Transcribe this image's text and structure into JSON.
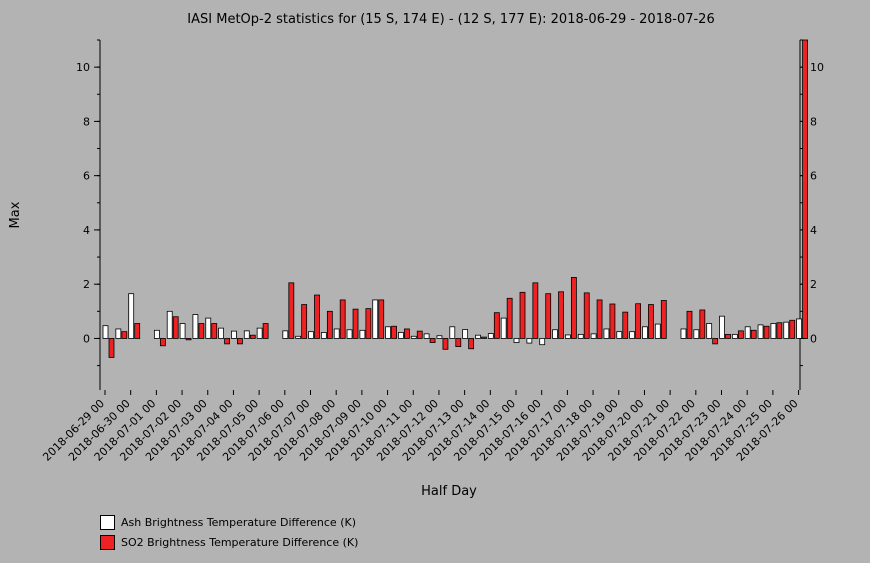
{
  "chart_data": {
    "type": "bar",
    "title": "IASI MetOp-2 statistics for (15 S, 174 E) - (12 S, 177 E): 2018-06-29 - 2018-07-26",
    "xlabel": "Half Day",
    "ylabel": "Max",
    "ylim": [
      -1.9,
      11.0
    ],
    "yticks": [
      0,
      2,
      4,
      6,
      8,
      10
    ],
    "grid": false,
    "legend_position": "bottom-left",
    "categories": [
      "2018-06-29 00",
      "2018-06-29 12",
      "2018-06-30 00",
      "2018-06-30 12",
      "2018-07-01 00",
      "2018-07-01 12",
      "2018-07-02 00",
      "2018-07-02 12",
      "2018-07-03 00",
      "2018-07-03 12",
      "2018-07-04 00",
      "2018-07-04 12",
      "2018-07-05 00",
      "2018-07-05 12",
      "2018-07-06 00",
      "2018-07-06 12",
      "2018-07-07 00",
      "2018-07-07 12",
      "2018-07-08 00",
      "2018-07-08 12",
      "2018-07-09 00",
      "2018-07-09 12",
      "2018-07-10 00",
      "2018-07-10 12",
      "2018-07-11 00",
      "2018-07-11 12",
      "2018-07-12 00",
      "2018-07-12 12",
      "2018-07-13 00",
      "2018-07-13 12",
      "2018-07-14 00",
      "2018-07-14 12",
      "2018-07-15 00",
      "2018-07-15 12",
      "2018-07-16 00",
      "2018-07-16 12",
      "2018-07-17 00",
      "2018-07-17 12",
      "2018-07-18 00",
      "2018-07-18 12",
      "2018-07-19 00",
      "2018-07-19 12",
      "2018-07-20 00",
      "2018-07-20 12",
      "2018-07-21 00",
      "2018-07-21 12",
      "2018-07-22 00",
      "2018-07-22 12",
      "2018-07-23 00",
      "2018-07-23 12",
      "2018-07-24 00",
      "2018-07-24 12",
      "2018-07-25 00",
      "2018-07-25 12",
      "2018-07-26 00"
    ],
    "tick_labels": [
      "2018-06-29 00",
      "2018-06-30 00",
      "2018-07-01 00",
      "2018-07-02 00",
      "2018-07-03 00",
      "2018-07-04 00",
      "2018-07-05 00",
      "2018-07-06 00",
      "2018-07-07 00",
      "2018-07-08 00",
      "2018-07-09 00",
      "2018-07-10 00",
      "2018-07-11 00",
      "2018-07-12 00",
      "2018-07-13 00",
      "2018-07-14 00",
      "2018-07-15 00",
      "2018-07-16 00",
      "2018-07-17 00",
      "2018-07-18 00",
      "2018-07-19 00",
      "2018-07-20 00",
      "2018-07-21 00",
      "2018-07-22 00",
      "2018-07-23 00",
      "2018-07-24 00",
      "2018-07-25 00",
      "2018-07-26 00"
    ],
    "series": [
      {
        "name": "Ash Brightness Temperature Difference (K)",
        "color": "#ffffff",
        "values": [
          0.47,
          0.35,
          1.65,
          null,
          0.3,
          1.0,
          0.55,
          0.88,
          0.75,
          0.38,
          0.27,
          0.28,
          0.38,
          null,
          0.28,
          0.08,
          0.25,
          0.22,
          0.35,
          0.32,
          0.3,
          1.42,
          0.43,
          0.22,
          0.08,
          0.17,
          0.1,
          0.43,
          0.33,
          0.12,
          0.18,
          0.75,
          -0.15,
          -0.17,
          -0.23,
          0.32,
          0.13,
          0.15,
          0.17,
          0.35,
          0.25,
          0.25,
          0.43,
          0.53,
          null,
          0.35,
          0.32,
          0.55,
          0.82,
          0.15,
          0.43,
          0.5,
          0.55,
          0.6,
          0.72
        ]
      },
      {
        "name": "SO2 Brightness Temperature Difference (K)",
        "color": "#ee2222",
        "values": [
          -0.7,
          0.25,
          0.55,
          null,
          -0.27,
          0.8,
          -0.05,
          0.55,
          0.55,
          -0.2,
          -0.2,
          0.12,
          0.55,
          null,
          2.05,
          1.25,
          1.6,
          1.0,
          1.42,
          1.08,
          1.1,
          1.42,
          0.45,
          0.35,
          0.27,
          -0.15,
          -0.4,
          -0.3,
          -0.38,
          0.05,
          0.95,
          1.48,
          1.7,
          2.05,
          1.65,
          1.72,
          2.25,
          1.68,
          1.42,
          1.27,
          0.97,
          1.28,
          1.25,
          1.4,
          null,
          1.0,
          1.05,
          -0.2,
          0.15,
          0.28,
          0.3,
          0.45,
          0.58,
          0.67,
          11.0
        ]
      }
    ]
  }
}
